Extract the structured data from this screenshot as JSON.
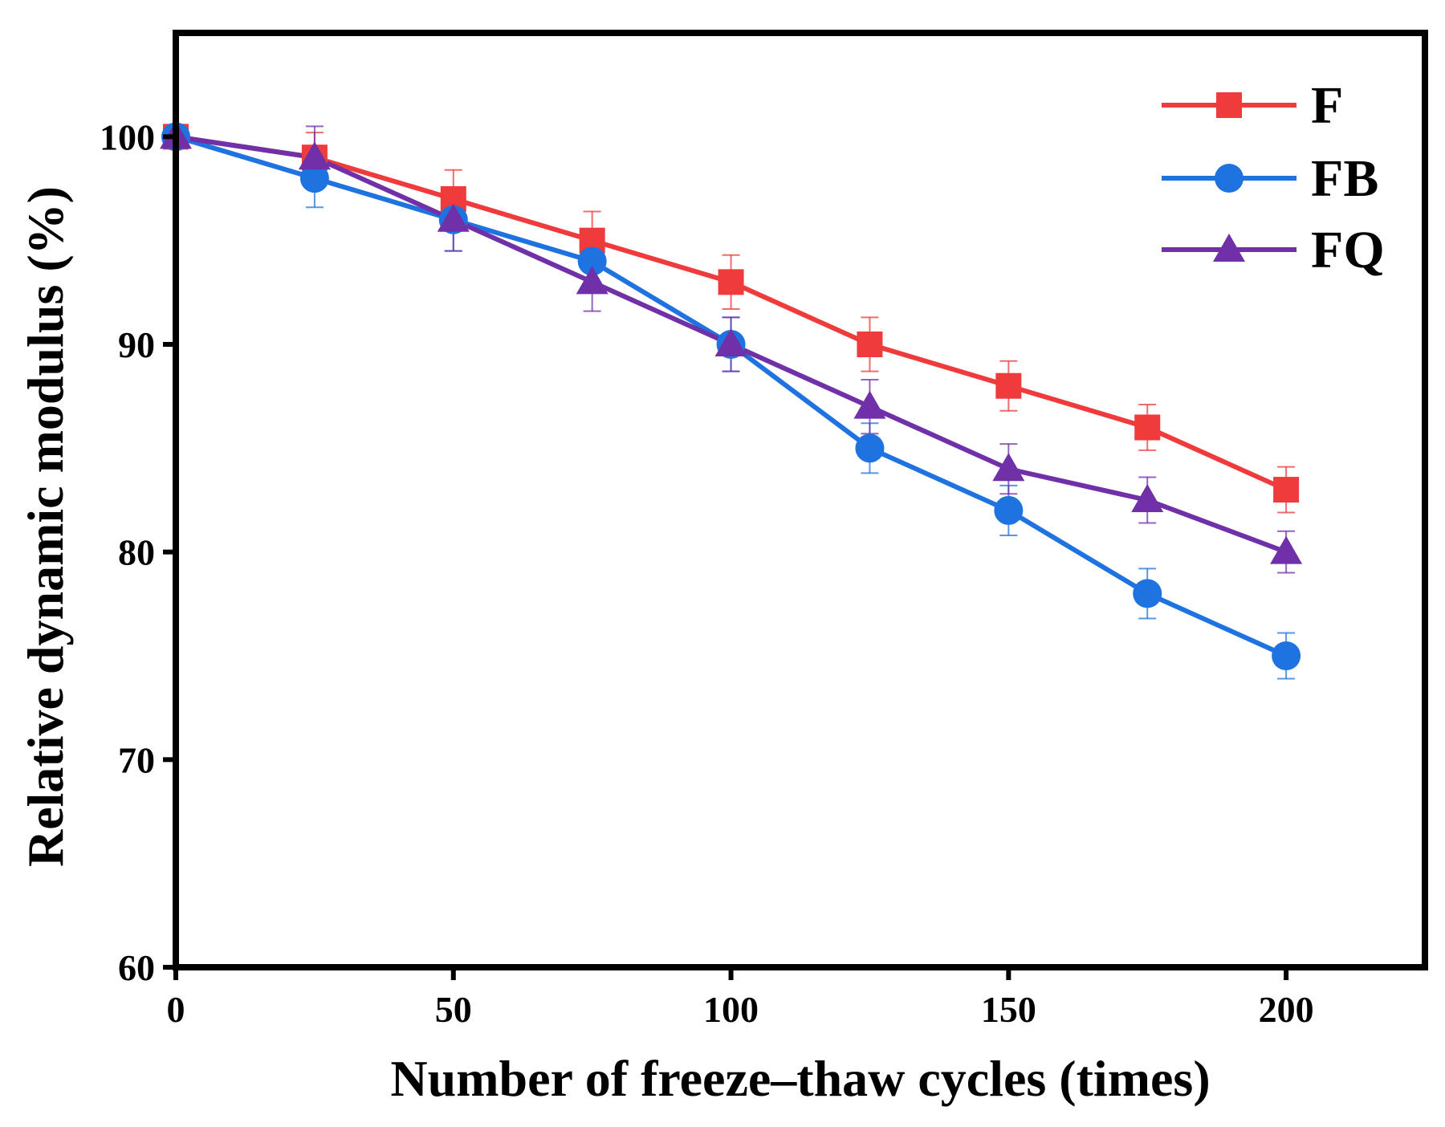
{
  "chart_data": {
    "type": "line",
    "title": "",
    "xlabel": "Number of freeze–thaw cycles (times)",
    "ylabel": "Relative dynamic modulus (%)",
    "xlim": [
      0,
      225
    ],
    "ylim": [
      60,
      105
    ],
    "xticks": [
      0,
      50,
      100,
      150,
      200
    ],
    "yticks": [
      60,
      70,
      80,
      90,
      100
    ],
    "x": [
      0,
      25,
      50,
      75,
      100,
      125,
      150,
      175,
      200
    ],
    "legend_position": "top-right",
    "grid": false,
    "series": [
      {
        "name": "F",
        "color": "#ef3b3b",
        "marker": "square",
        "values": [
          100,
          99,
          97,
          95,
          93,
          90,
          88,
          86,
          83
        ],
        "errors": [
          0,
          1.2,
          1.4,
          1.4,
          1.3,
          1.3,
          1.2,
          1.1,
          1.1
        ]
      },
      {
        "name": "FB",
        "color": "#1f73e0",
        "marker": "circle",
        "values": [
          100,
          98,
          96,
          94,
          90,
          85,
          82,
          78,
          75
        ],
        "errors": [
          0,
          1.4,
          1.5,
          1.4,
          1.3,
          1.2,
          1.2,
          1.2,
          1.1
        ]
      },
      {
        "name": "FQ",
        "color": "#7030a8",
        "marker": "triangle",
        "values": [
          100,
          99,
          96,
          93,
          90,
          87,
          84,
          82.5,
          80
        ],
        "errors": [
          0,
          1.5,
          1.5,
          1.4,
          1.3,
          1.3,
          1.2,
          1.1,
          1.0
        ]
      }
    ]
  }
}
